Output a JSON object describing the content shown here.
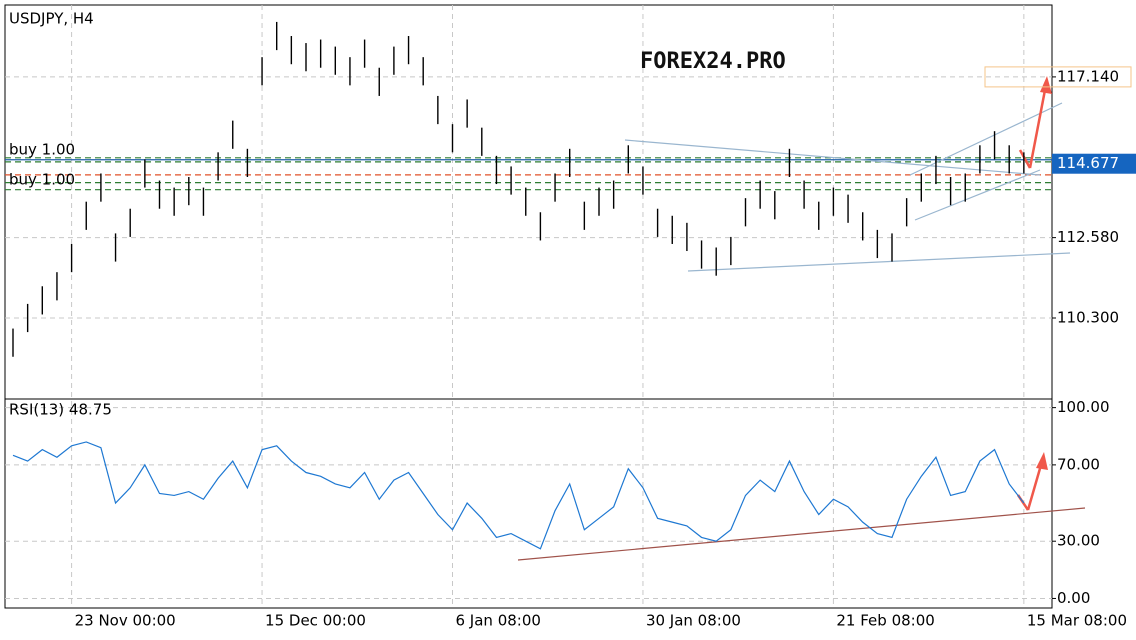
{
  "chart_data": [
    {
      "type": "ohlc",
      "title": "USDJPY, H4",
      "watermark": "FOREX24.PRO",
      "categories": [
        null,
        null,
        null,
        null,
        "23 Nov 00:00",
        null,
        null,
        null,
        null,
        null,
        null,
        null,
        null,
        null,
        null,
        null,
        null,
        "15 Dec 00:00",
        null,
        null,
        null,
        null,
        null,
        null,
        null,
        null,
        null,
        null,
        null,
        null,
        "6 Jan 08:00",
        null,
        null,
        null,
        null,
        null,
        null,
        null,
        null,
        null,
        null,
        null,
        null,
        "30 Jan 08:00",
        null,
        null,
        null,
        null,
        null,
        null,
        null,
        null,
        null,
        null,
        null,
        null,
        "21 Feb 08:00",
        null,
        null,
        null,
        null,
        null,
        null,
        null,
        null,
        null,
        null,
        null,
        null,
        "15 Mar 08:00"
      ],
      "high": [
        110.0,
        110.7,
        111.2,
        111.6,
        112.4,
        113.6,
        114.4,
        112.7,
        113.4,
        114.8,
        114.2,
        114.0,
        114.3,
        114.0,
        115.0,
        115.9,
        115.1,
        117.7,
        118.7,
        118.3,
        118.1,
        118.2,
        118.0,
        117.7,
        118.2,
        117.4,
        118.0,
        118.3,
        117.7,
        116.6,
        115.8,
        116.5,
        115.7,
        114.9,
        114.6,
        114.0,
        113.3,
        114.4,
        115.1,
        113.6,
        114.0,
        114.2,
        115.2,
        114.6,
        113.4,
        113.2,
        113.0,
        112.5,
        112.3,
        112.6,
        113.7,
        114.2,
        113.9,
        115.1,
        114.2,
        113.6,
        114.0,
        113.8,
        113.3,
        112.8,
        112.7,
        113.7,
        114.4,
        114.9,
        114.3,
        114.4,
        115.2,
        115.6,
        115.2,
        115.0
      ],
      "low": [
        109.2,
        109.9,
        110.4,
        110.8,
        111.6,
        112.8,
        113.6,
        111.9,
        112.6,
        114.0,
        113.4,
        113.2,
        113.5,
        113.2,
        114.2,
        115.1,
        114.3,
        116.9,
        117.9,
        117.5,
        117.3,
        117.4,
        117.2,
        116.9,
        117.4,
        116.6,
        117.2,
        117.5,
        116.9,
        115.8,
        115.0,
        115.7,
        114.9,
        114.1,
        113.8,
        113.2,
        112.5,
        113.6,
        114.3,
        112.8,
        113.2,
        113.4,
        114.4,
        113.8,
        112.6,
        112.4,
        112.2,
        111.7,
        111.5,
        111.8,
        112.9,
        113.4,
        113.1,
        114.3,
        113.4,
        112.8,
        113.2,
        113.0,
        112.5,
        112.0,
        111.9,
        112.9,
        113.6,
        114.1,
        113.5,
        113.6,
        114.4,
        114.8,
        114.4,
        114.4
      ],
      "ylim": [
        108.03,
        119.18
      ],
      "yticks": [
        {
          "value": 110.3,
          "label": "110.300"
        },
        {
          "value": 112.58,
          "label": "112.580"
        },
        {
          "value": 117.14,
          "label": "117.140"
        }
      ],
      "current_price": {
        "value": 114.677,
        "label": "114.677"
      },
      "levels": [
        {
          "value": 114.845,
          "color": "#2e7d32"
        },
        {
          "value": 114.79,
          "color": "#1f5fa8"
        },
        {
          "value": 114.73,
          "color": "#2e7d32"
        },
        {
          "value": 114.36,
          "color": "#e0502a"
        },
        {
          "value": 114.14,
          "color": "#2e7d32"
        },
        {
          "value": 113.94,
          "color": "#2e7d32"
        }
      ],
      "order_labels": [
        "buy 1.00",
        "buy 1.00"
      ]
    },
    {
      "type": "line",
      "title": "RSI(13) 48.75",
      "color": "#1e78d2",
      "values": [
        75,
        72,
        78,
        74,
        80,
        82,
        79,
        50,
        58,
        70,
        55,
        54,
        56,
        52,
        63,
        72,
        58,
        78,
        80,
        72,
        66,
        64,
        60,
        58,
        66,
        52,
        62,
        66,
        55,
        44,
        36,
        50,
        42,
        32,
        34,
        30,
        26,
        46,
        60,
        36,
        42,
        48,
        68,
        58,
        42,
        40,
        38,
        32,
        30,
        36,
        54,
        62,
        56,
        72,
        56,
        44,
        52,
        48,
        40,
        34,
        32,
        52,
        64,
        74,
        54,
        56,
        72,
        78,
        60,
        50
      ],
      "ylim": [
        -5,
        104
      ],
      "yticks": [
        {
          "value": 0,
          "label": "0.00"
        },
        {
          "value": 30,
          "label": "30.00"
        },
        {
          "value": 70,
          "label": "70.00"
        },
        {
          "value": 100,
          "label": "100.00"
        }
      ]
    }
  ]
}
